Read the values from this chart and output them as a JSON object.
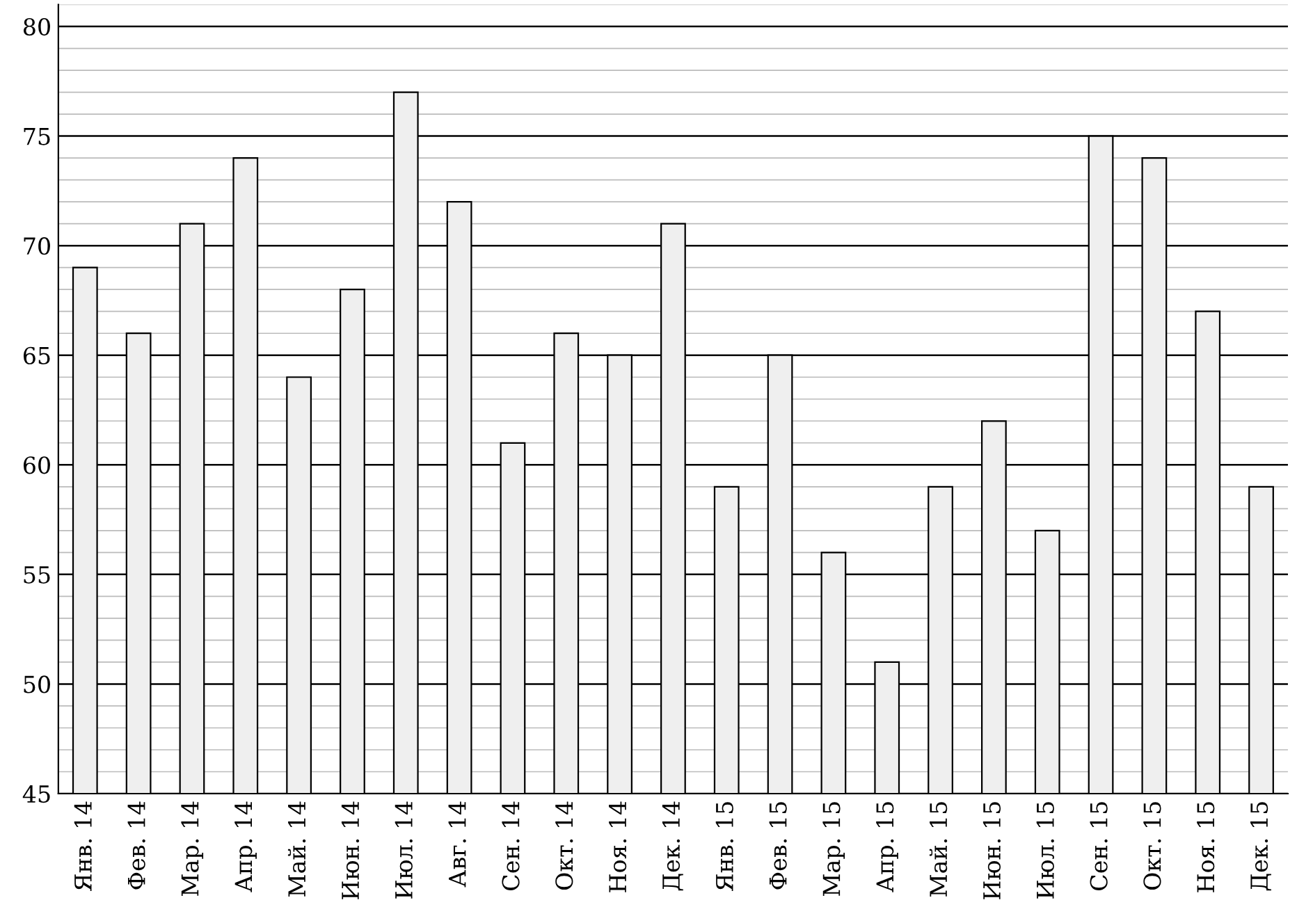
{
  "chart_data": {
    "type": "bar",
    "categories": [
      "Янв. 14",
      "Фев. 14",
      "Мар. 14",
      "Апр. 14",
      "Май. 14",
      "Июн. 14",
      "Июл. 14",
      "Авг. 14",
      "Сен. 14",
      "Окт. 14",
      "Ноя. 14",
      "Дек. 14",
      "Янв. 15",
      "Фев. 15",
      "Мар. 15",
      "Апр. 15",
      "Май. 15",
      "Июн. 15",
      "Июл. 15",
      "Сен. 15",
      "Окт. 15",
      "Ноя. 15",
      "Дек. 15"
    ],
    "values": [
      69,
      66,
      71,
      74,
      64,
      68,
      77,
      72,
      61,
      66,
      65,
      71,
      59,
      65,
      56,
      51,
      59,
      62,
      57,
      75,
      74,
      67,
      59
    ],
    "color": "#efefef",
    "ylim": [
      45,
      81
    ],
    "yticks": [
      45,
      {
        "value": 46,
        "label": null
      },
      {
        "value": 47,
        "label": null
      },
      {
        "value": 48,
        "label": null
      },
      {
        "value": 49,
        "label": null
      },
      50,
      {
        "value": 51,
        "label": null
      },
      {
        "value": 52,
        "label": null
      },
      {
        "value": 53,
        "label": null
      },
      {
        "value": 54,
        "label": null
      },
      55,
      {
        "value": 56,
        "label": null
      },
      {
        "value": 57,
        "label": null
      },
      {
        "value": 58,
        "label": null
      },
      {
        "value": 59,
        "label": null
      },
      60,
      {
        "value": 61,
        "label": null
      },
      {
        "value": 62,
        "label": null
      },
      {
        "value": 63,
        "label": null
      },
      {
        "value": 64,
        "label": null
      },
      65,
      {
        "value": 66,
        "label": null
      },
      {
        "value": 67,
        "label": null
      },
      {
        "value": 68,
        "label": null
      },
      {
        "value": 69,
        "label": null
      },
      70,
      {
        "value": 71,
        "label": null
      },
      {
        "value": 72,
        "label": null
      },
      {
        "value": 73,
        "label": null
      },
      {
        "value": 74,
        "label": null
      },
      75,
      {
        "value": 76,
        "label": null
      },
      {
        "value": 77,
        "label": null
      },
      {
        "value": 78,
        "label": null
      },
      {
        "value": 79,
        "label": null
      },
      80,
      {
        "value": 81,
        "label": null
      }
    ],
    "grid": "y"
  }
}
